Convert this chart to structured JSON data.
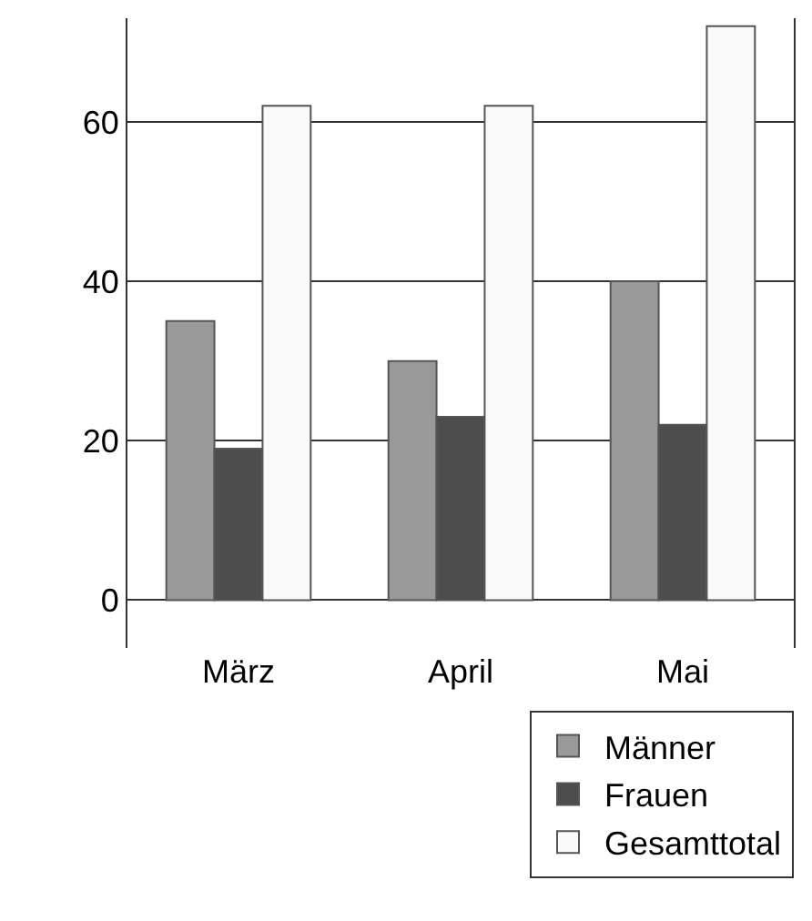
{
  "chart_data": {
    "type": "bar",
    "categories": [
      "März",
      "April",
      "Mai"
    ],
    "series": [
      {
        "name": "Männer",
        "color": "#999999",
        "values": [
          35,
          30,
          40
        ]
      },
      {
        "name": "Frauen",
        "color": "#4d4d4d",
        "values": [
          19,
          23,
          22
        ]
      },
      {
        "name": "Gesamttotal",
        "color": "#fafafa",
        "values": [
          62,
          62,
          72
        ]
      }
    ],
    "ylim": [
      -6,
      73
    ],
    "yticks": [
      0,
      20,
      40,
      60
    ],
    "grid": "y",
    "legend": "bottom right"
  }
}
